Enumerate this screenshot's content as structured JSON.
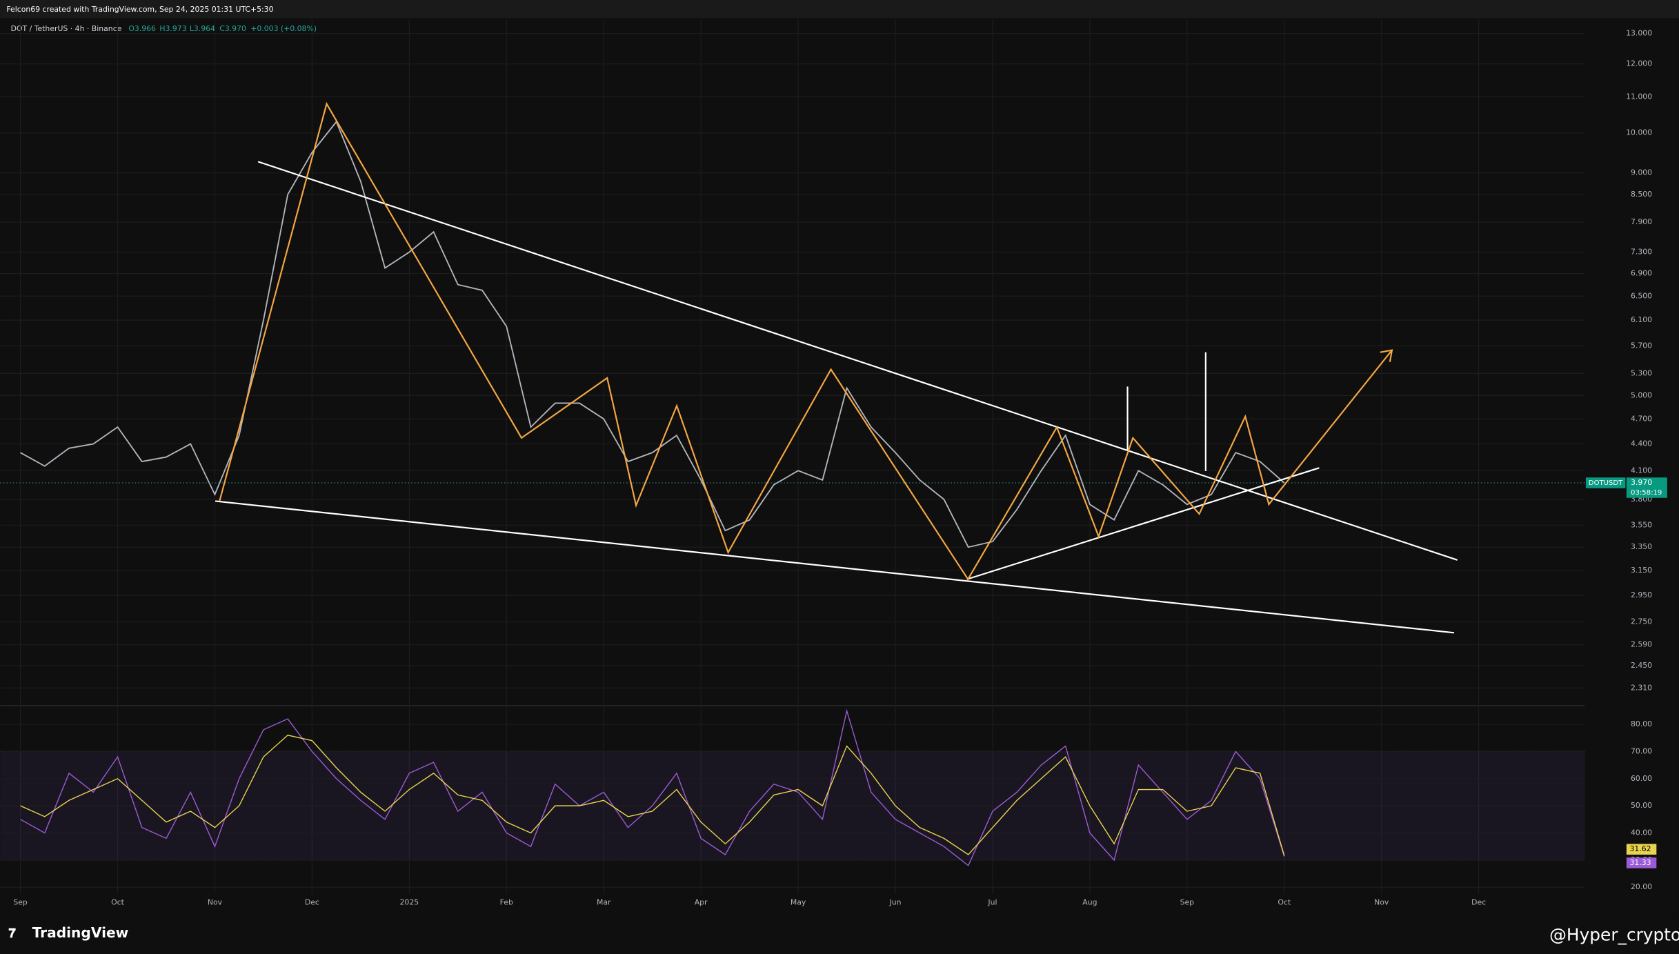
{
  "header": {
    "attribution": "Felcon69 created with TradingView.com, Sep 24, 2025 01:31 UTC+5:30",
    "symbol": "DOT / TetherUS · 4h · Binance",
    "ohlc": [
      "O3.966",
      "H3.973",
      "L3.964",
      "C3.970"
    ],
    "change": "+0.003 (+0.08%)"
  },
  "price_tag": {
    "symbol": "DOTUSDT",
    "countdown": "03:58:19"
  },
  "footer": {
    "brand": "TradingView",
    "watermark": "@Hyper_crypto"
  },
  "chart_data": [
    {
      "type": "line",
      "log_scale": true,
      "grid": true,
      "color": "#b2b5be",
      "categories": [
        "Sep",
        null,
        null,
        null,
        "Oct",
        null,
        null,
        null,
        "Nov",
        null,
        null,
        null,
        "Dec",
        null,
        null,
        null,
        "2025",
        null,
        null,
        null,
        "Feb",
        null,
        null,
        null,
        "Mar",
        null,
        null,
        null,
        "Apr",
        null,
        null,
        null,
        "May",
        null,
        null,
        null,
        "Jun",
        null,
        null,
        null,
        "Jul",
        null,
        null,
        null,
        "Aug",
        null,
        null,
        null,
        "Sep",
        null,
        null,
        null,
        "Oct",
        null,
        null,
        null,
        "Nov",
        null,
        null,
        null,
        "Dec",
        null,
        null,
        null
      ],
      "values": [
        4.3,
        4.15,
        4.35,
        4.4,
        4.6,
        4.2,
        4.25,
        4.4,
        3.85,
        4.5,
        6.1,
        8.5,
        9.5,
        10.3,
        8.8,
        7.0,
        7.3,
        7.7,
        6.7,
        6.6,
        6.0,
        4.6,
        4.9,
        4.9,
        4.7,
        4.2,
        4.3,
        4.5,
        4.0,
        3.5,
        3.6,
        3.95,
        4.1,
        4.0,
        5.1,
        4.6,
        4.3,
        4.0,
        3.8,
        3.35,
        3.4,
        3.7,
        4.1,
        4.5,
        3.75,
        3.6,
        4.1,
        3.95,
        3.75,
        3.85,
        4.3,
        4.2,
        3.97,
        null,
        null,
        null,
        null,
        null,
        null,
        null,
        null,
        null,
        null,
        null
      ],
      "value_labels": [
        null,
        null,
        null,
        null,
        null,
        null,
        null,
        null,
        null,
        null,
        null,
        null,
        null,
        null,
        null,
        null,
        null,
        null,
        null,
        null,
        null,
        null,
        null,
        null,
        null,
        null,
        null,
        null,
        null,
        null,
        null,
        null,
        null,
        null,
        null,
        null,
        null,
        null,
        null,
        null,
        null,
        null,
        null,
        null,
        null,
        null,
        null,
        null,
        null,
        null,
        null,
        null,
        "3.970",
        null,
        null,
        null,
        null,
        null,
        null,
        null,
        null,
        null,
        null,
        null
      ],
      "ylim": [
        2.23,
        13.5
      ],
      "yticks": [
        {
          "value": 13,
          "label": "13.000"
        },
        {
          "value": 12,
          "label": "12.000"
        },
        {
          "value": 11,
          "label": "11.000"
        },
        {
          "value": 10,
          "label": "10.000"
        },
        {
          "value": 9,
          "label": "9.000"
        },
        {
          "value": 8.5,
          "label": "8.500"
        },
        {
          "value": 7.9,
          "label": "7.900"
        },
        {
          "value": 7.3,
          "label": "7.300"
        },
        {
          "value": 6.9,
          "label": "6.900"
        },
        {
          "value": 6.5,
          "label": "6.500"
        },
        {
          "value": 6.1,
          "label": "6.100"
        },
        {
          "value": 5.7,
          "label": "5.700"
        },
        {
          "value": 5.3,
          "label": "5.300"
        },
        {
          "value": 5,
          "label": "5.000"
        },
        {
          "value": 4.7,
          "label": "4.700"
        },
        {
          "value": 4.4,
          "label": "4.400"
        },
        {
          "value": 4.1,
          "label": "4.100"
        },
        {
          "value": 3.8,
          "label": "3.800"
        },
        {
          "value": 3.55,
          "label": "3.550"
        },
        {
          "value": 3.35,
          "label": "3.350"
        },
        {
          "value": 3.15,
          "label": "3.150"
        },
        {
          "value": 2.95,
          "label": "2.950"
        },
        {
          "value": 2.75,
          "label": "2.750"
        },
        {
          "value": 2.59,
          "label": "2.590"
        },
        {
          "value": 2.45,
          "label": "2.450"
        },
        {
          "value": 2.31,
          "label": "2.310"
        }
      ]
    },
    {
      "type": "line",
      "grid": true,
      "band_color": "#7e57c2",
      "levels": [
        30,
        50,
        70
      ],
      "series": [
        {
          "color": "#9c5bd6",
          "values": [
            45,
            40,
            62,
            55,
            68,
            42,
            38,
            55,
            35,
            60,
            78,
            82,
            70,
            60,
            52,
            45,
            62,
            66,
            48,
            55,
            40,
            35,
            58,
            50,
            55,
            42,
            50,
            62,
            38,
            32,
            48,
            58,
            55,
            45,
            85,
            55,
            45,
            40,
            35,
            28,
            48,
            55,
            65,
            72,
            40,
            30,
            65,
            55,
            45,
            52,
            70,
            60,
            31.33,
            null,
            null,
            null,
            null,
            null,
            null,
            null,
            null,
            null,
            null,
            null
          ]
        },
        {
          "color": "#e8d44d",
          "values": [
            50,
            46,
            52,
            56,
            60,
            52,
            44,
            48,
            42,
            50,
            68,
            76,
            74,
            64,
            55,
            48,
            56,
            62,
            54,
            52,
            44,
            40,
            50,
            50,
            52,
            46,
            48,
            56,
            44,
            36,
            44,
            54,
            56,
            50,
            72,
            62,
            50,
            42,
            38,
            32,
            42,
            52,
            60,
            68,
            50,
            36,
            56,
            56,
            48,
            50,
            64,
            62,
            31.62,
            null,
            null,
            null,
            null,
            null,
            null,
            null,
            null,
            null,
            null,
            null
          ]
        }
      ],
      "ylim": [
        17.5,
        86.5
      ],
      "yticks": [
        {
          "value": 20,
          "label": "20.00"
        },
        {
          "value": 30,
          "label": "30.00"
        },
        {
          "value": 40,
          "label": "40.00"
        },
        {
          "value": 50,
          "label": "50.00"
        },
        {
          "value": 60,
          "label": "60.00"
        },
        {
          "value": 70,
          "label": "70.00"
        },
        {
          "value": 80,
          "label": "80.00"
        }
      ]
    }
  ]
}
